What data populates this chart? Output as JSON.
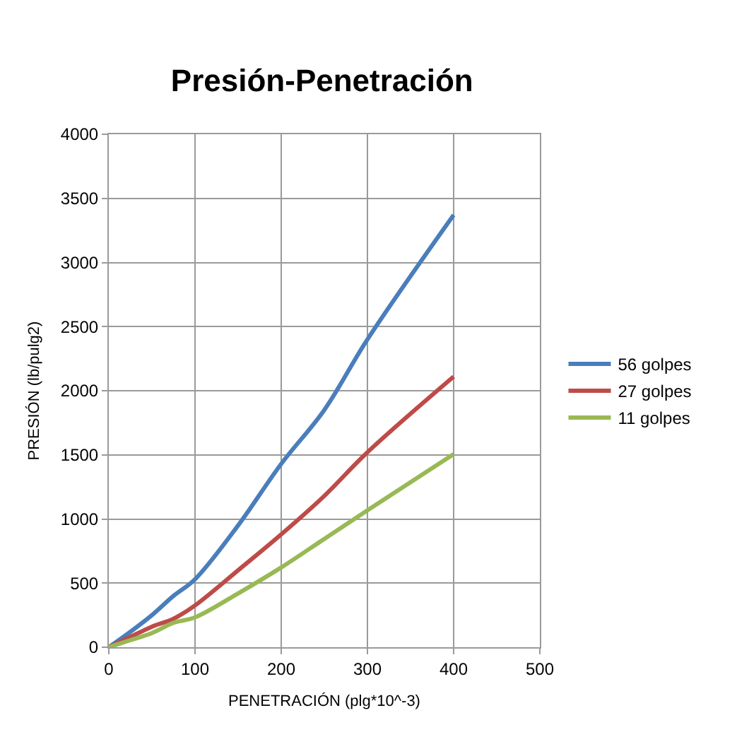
{
  "chart_data": {
    "type": "line",
    "title": "Presión-Penetración",
    "xlabel": "PENETRACIÓN (plg*10^-3)",
    "ylabel": "PRESIÓN (lb/pulg2)",
    "x": [
      0,
      25,
      50,
      75,
      100,
      150,
      200,
      250,
      300,
      400
    ],
    "series": [
      {
        "name": "56 golpes",
        "color": "#4a7ebb",
        "values": [
          0,
          120,
          250,
          400,
          530,
          950,
          1430,
          1850,
          2400,
          3370
        ]
      },
      {
        "name": "27 golpes",
        "color": "#be4b48",
        "values": [
          0,
          80,
          160,
          222,
          326,
          600,
          880,
          1180,
          1520,
          2110
        ]
      },
      {
        "name": "11 golpes",
        "color": "#98b954",
        "values": [
          0,
          55,
          110,
          190,
          233,
          420,
          622,
          845,
          1067,
          1505
        ]
      }
    ],
    "xlim": [
      0,
      500
    ],
    "xticks": [
      0,
      100,
      200,
      300,
      400,
      500
    ],
    "ylim": [
      0,
      4000
    ],
    "yticks": [
      0,
      500,
      1000,
      1500,
      2000,
      2500,
      3000,
      3500,
      4000
    ],
    "grid": true,
    "legend": "right",
    "marker": "none",
    "line_style": "solid"
  }
}
